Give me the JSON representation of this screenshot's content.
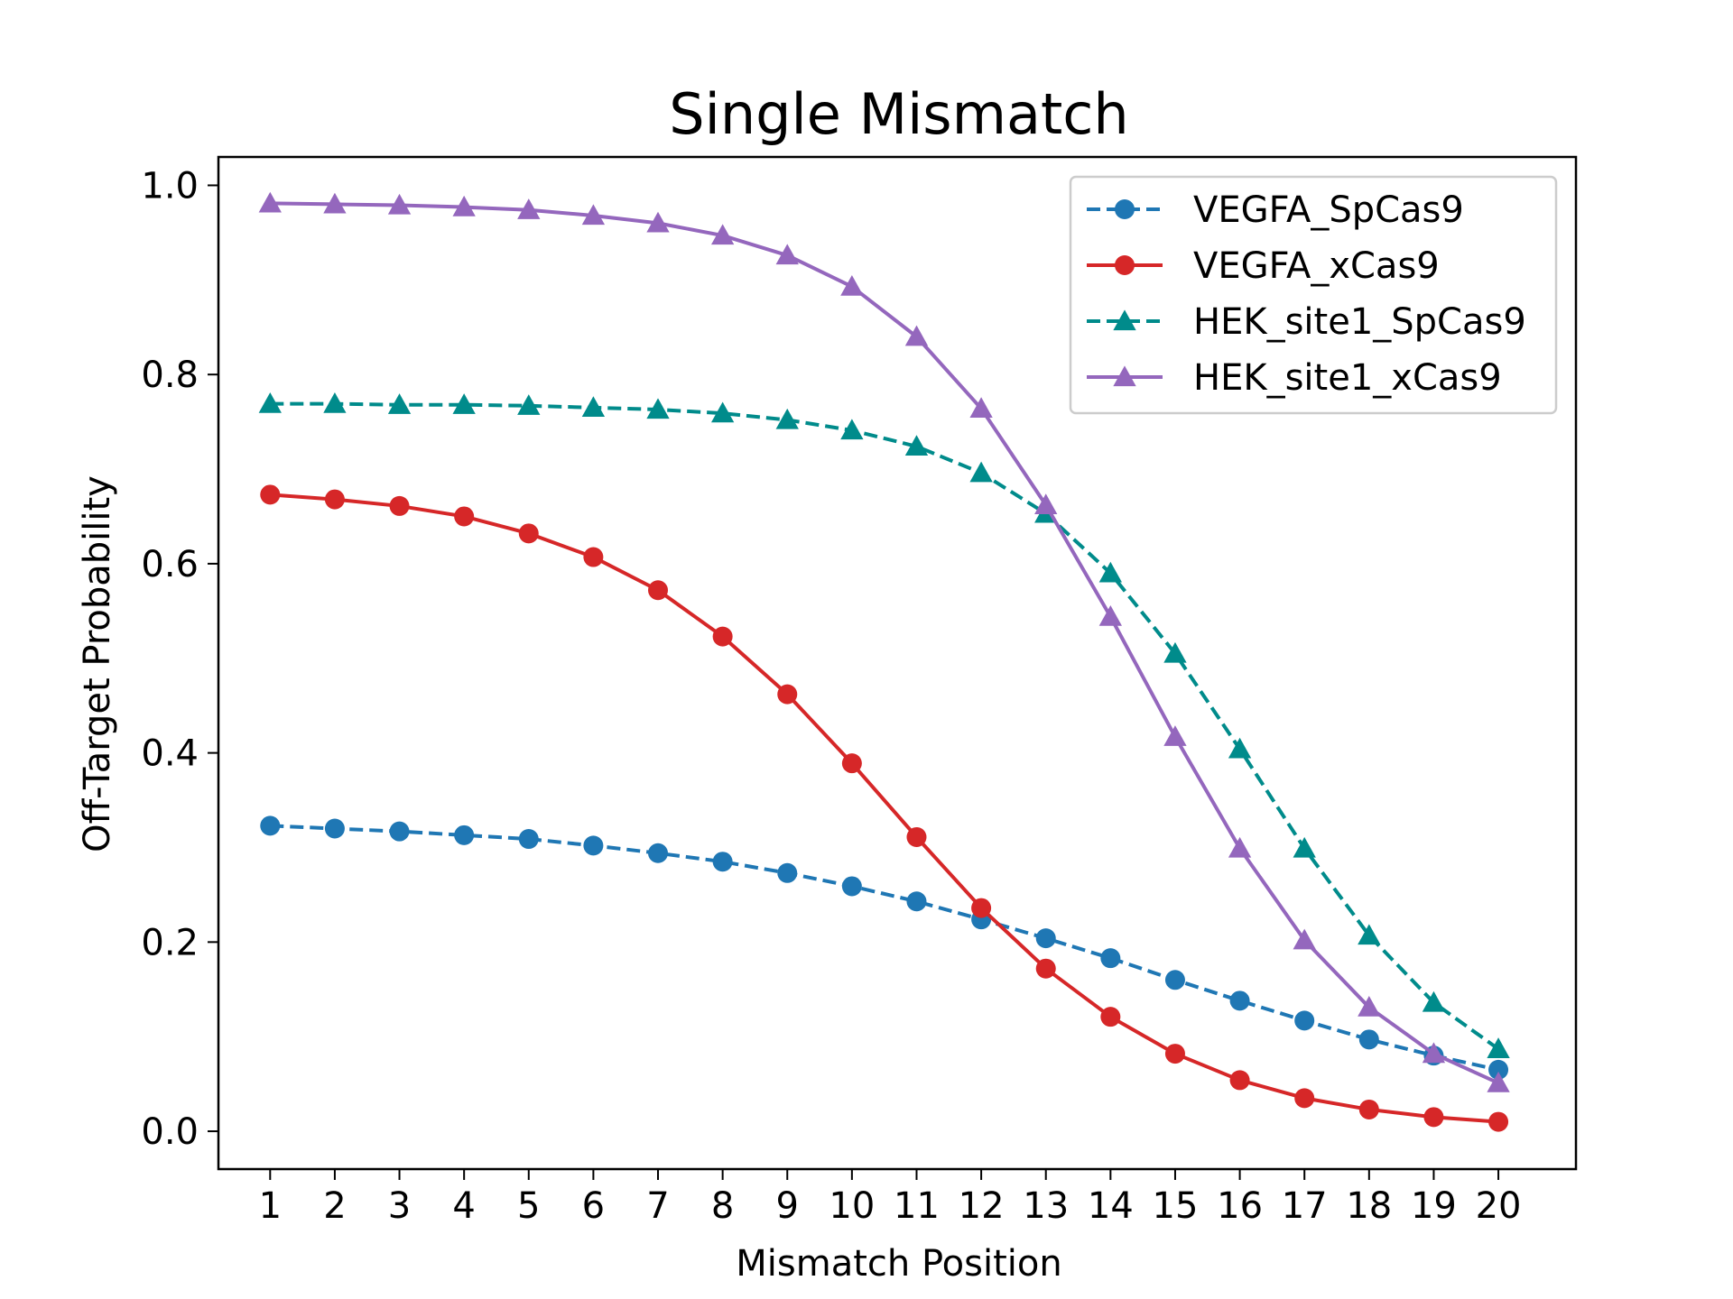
{
  "chart_data": {
    "type": "line",
    "title": "Single Mismatch",
    "xlabel": "Mismatch Position",
    "ylabel": "Off-Target Probability",
    "x": [
      1,
      2,
      3,
      4,
      5,
      6,
      7,
      8,
      9,
      10,
      11,
      12,
      13,
      14,
      15,
      16,
      17,
      18,
      19,
      20
    ],
    "x_tick_labels": [
      "1",
      "2",
      "3",
      "4",
      "5",
      "6",
      "7",
      "8",
      "9",
      "10",
      "11",
      "12",
      "13",
      "14",
      "15",
      "16",
      "17",
      "18",
      "19",
      "20"
    ],
    "xlim": [
      0.2,
      21.2
    ],
    "ylim": [
      -0.04,
      1.03
    ],
    "y_ticks": [
      0.0,
      0.2,
      0.4,
      0.6,
      0.8,
      1.0
    ],
    "y_tick_labels": [
      "0.0",
      "0.2",
      "0.4",
      "0.6",
      "0.8",
      "1.0"
    ],
    "grid": false,
    "legend_position": "top-right",
    "series": [
      {
        "name": "VEGFA_SpCas9",
        "color": "#1f77b4",
        "linestyle": "dashed",
        "marker": "circle",
        "values": [
          0.323,
          0.32,
          0.317,
          0.313,
          0.309,
          0.302,
          0.294,
          0.285,
          0.273,
          0.259,
          0.243,
          0.224,
          0.204,
          0.183,
          0.16,
          0.138,
          0.117,
          0.097,
          0.08,
          0.065
        ]
      },
      {
        "name": "VEGFA_xCas9",
        "color": "#d62728",
        "linestyle": "solid",
        "marker": "circle",
        "values": [
          0.673,
          0.668,
          0.661,
          0.65,
          0.632,
          0.607,
          0.572,
          0.523,
          0.462,
          0.389,
          0.311,
          0.236,
          0.172,
          0.121,
          0.082,
          0.054,
          0.035,
          0.023,
          0.015,
          0.01
        ]
      },
      {
        "name": "HEK_site1_SpCas9",
        "color": "#008b8b",
        "linestyle": "dashed",
        "marker": "triangle",
        "values": [
          0.769,
          0.769,
          0.768,
          0.768,
          0.767,
          0.765,
          0.763,
          0.759,
          0.752,
          0.741,
          0.724,
          0.696,
          0.653,
          0.59,
          0.505,
          0.404,
          0.299,
          0.207,
          0.136,
          0.087
        ]
      },
      {
        "name": "HEK_site1_xCas9",
        "color": "#9467bd",
        "linestyle": "solid",
        "marker": "triangle",
        "values": [
          0.981,
          0.98,
          0.979,
          0.977,
          0.974,
          0.968,
          0.96,
          0.947,
          0.926,
          0.893,
          0.84,
          0.764,
          0.662,
          0.544,
          0.417,
          0.299,
          0.202,
          0.131,
          0.082,
          0.051
        ]
      }
    ]
  }
}
